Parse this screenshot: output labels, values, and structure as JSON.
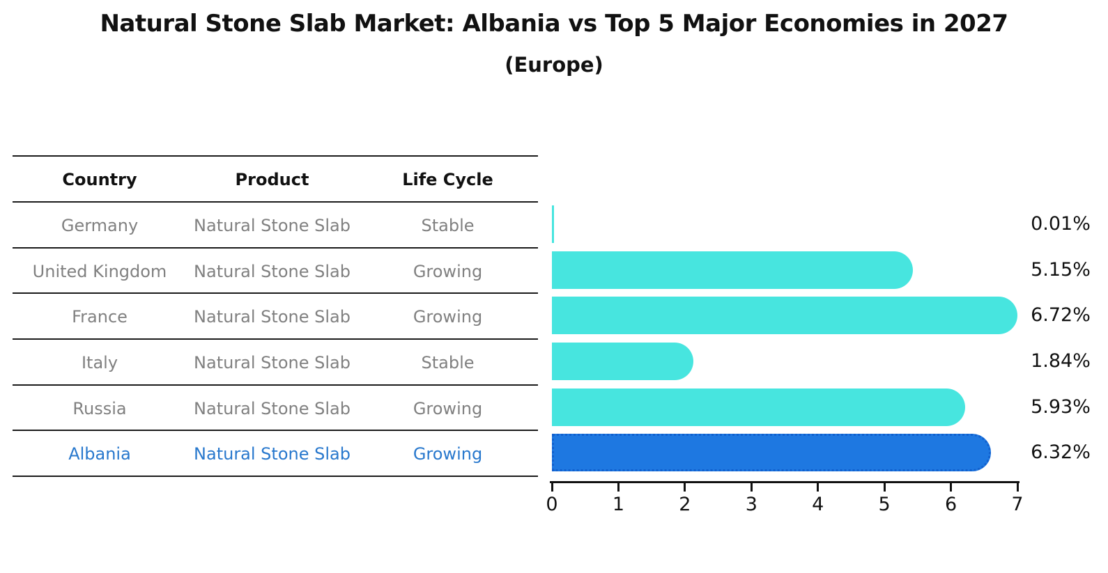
{
  "title": "Natural Stone Slab Market: Albania vs Top 5 Major Economies in 2027",
  "subtitle": "(Europe)",
  "table": {
    "headers": [
      "Country",
      "Product",
      "Life Cycle"
    ],
    "rows": [
      {
        "country": "Germany",
        "product": "Natural Stone Slab",
        "life_cycle": "Stable",
        "highlight": false
      },
      {
        "country": "United Kingdom",
        "product": "Natural Stone Slab",
        "life_cycle": "Growing",
        "highlight": false
      },
      {
        "country": "France",
        "product": "Natural Stone Slab",
        "life_cycle": "Growing",
        "highlight": false
      },
      {
        "country": "Italy",
        "product": "Natural Stone Slab",
        "life_cycle": "Stable",
        "highlight": false
      },
      {
        "country": "Russia",
        "product": "Natural Stone Slab",
        "life_cycle": "Growing",
        "highlight": false
      },
      {
        "country": "Albania",
        "product": "Natural Stone Slab",
        "life_cycle": "Growing",
        "highlight": true
      }
    ]
  },
  "chart_data": {
    "type": "bar",
    "orientation": "horizontal",
    "title": "Natural Stone Slab Market: Albania vs Top 5 Major Economies in 2027",
    "subtitle": "(Europe)",
    "categories": [
      "Germany",
      "United Kingdom",
      "France",
      "Italy",
      "Russia",
      "Albania"
    ],
    "values": [
      0.01,
      5.15,
      6.72,
      1.84,
      5.93,
      6.32
    ],
    "value_labels": [
      "0.01%",
      "5.15%",
      "6.72%",
      "1.84%",
      "5.93%",
      "6.32%"
    ],
    "xlim": [
      0,
      7
    ],
    "x_ticks": [
      "0",
      "1",
      "2",
      "3",
      "4",
      "5",
      "6",
      "7"
    ],
    "grid": false,
    "legend": "none",
    "highlight_index": 5
  },
  "colors": {
    "bar": "#47E5DF",
    "highlight_bar": "#1E78E1",
    "highlight_border": "#1160CE",
    "row_text": "#808080",
    "highlight_text": "#2878CD",
    "axis": "#111111"
  }
}
